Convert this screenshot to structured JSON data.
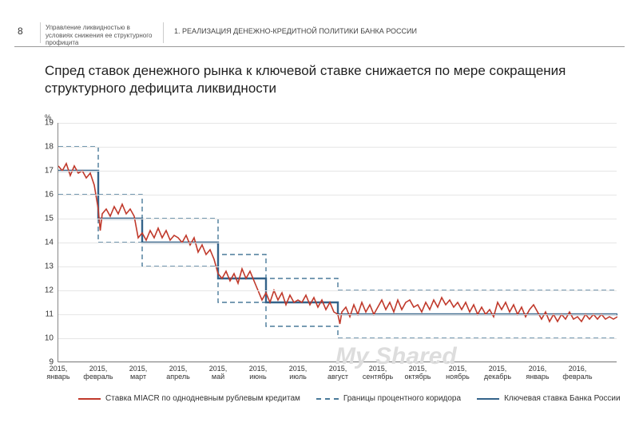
{
  "header": {
    "page_number": "8",
    "doc_title": "Управление ликвидностью в условиях снижения ее структурного профицита",
    "section_title": "1. РЕАЛИЗАЦИЯ ДЕНЕЖНО-КРЕДИТНОЙ ПОЛИТИКИ БАНКА РОССИИ"
  },
  "title": "Спред ставок денежного рынка к ключевой ставке снижается по мере сокращения структурного дефицита ликвидности",
  "chart": {
    "type": "line",
    "y_unit": "%",
    "ylim": [
      9,
      19
    ],
    "yticks": [
      9,
      10,
      11,
      12,
      13,
      14,
      15,
      16,
      17,
      18,
      19
    ],
    "xlim": [
      0,
      14
    ],
    "xticks": [
      {
        "pos": 0.0,
        "l1": "2015,",
        "l2": "январь"
      },
      {
        "pos": 1.0,
        "l1": "2015,",
        "l2": "февраль"
      },
      {
        "pos": 2.0,
        "l1": "2015,",
        "l2": "март"
      },
      {
        "pos": 3.0,
        "l1": "2015,",
        "l2": "апрель"
      },
      {
        "pos": 4.0,
        "l1": "2015,",
        "l2": "май"
      },
      {
        "pos": 5.0,
        "l1": "2015,",
        "l2": "июнь"
      },
      {
        "pos": 6.0,
        "l1": "2015,",
        "l2": "июль"
      },
      {
        "pos": 7.0,
        "l1": "2015,",
        "l2": "август"
      },
      {
        "pos": 8.0,
        "l1": "2015,",
        "l2": "сентябрь"
      },
      {
        "pos": 9.0,
        "l1": "2015,",
        "l2": "октябрь"
      },
      {
        "pos": 10.0,
        "l1": "2015,",
        "l2": "ноябрь"
      },
      {
        "pos": 11.0,
        "l1": "2015,",
        "l2": "декабрь"
      },
      {
        "pos": 12.0,
        "l1": "2016,",
        "l2": "январь"
      },
      {
        "pos": 13.0,
        "l1": "2016,",
        "l2": "февраль"
      }
    ],
    "background_color": "#ffffff",
    "grid_color": "#e6e6e6",
    "series": {
      "miacr": {
        "color": "#c0392b",
        "width": 1.6,
        "dash": "none",
        "data": [
          [
            0.0,
            17.2
          ],
          [
            0.1,
            17.0
          ],
          [
            0.2,
            17.3
          ],
          [
            0.3,
            16.8
          ],
          [
            0.4,
            17.2
          ],
          [
            0.5,
            16.9
          ],
          [
            0.6,
            17.0
          ],
          [
            0.7,
            16.7
          ],
          [
            0.8,
            16.9
          ],
          [
            0.9,
            16.4
          ],
          [
            1.0,
            15.4
          ],
          [
            1.05,
            14.5
          ],
          [
            1.1,
            15.2
          ],
          [
            1.2,
            15.4
          ],
          [
            1.3,
            15.1
          ],
          [
            1.4,
            15.5
          ],
          [
            1.5,
            15.2
          ],
          [
            1.6,
            15.6
          ],
          [
            1.7,
            15.2
          ],
          [
            1.8,
            15.4
          ],
          [
            1.9,
            15.1
          ],
          [
            2.0,
            14.2
          ],
          [
            2.1,
            14.4
          ],
          [
            2.2,
            14.1
          ],
          [
            2.3,
            14.5
          ],
          [
            2.4,
            14.2
          ],
          [
            2.5,
            14.6
          ],
          [
            2.6,
            14.2
          ],
          [
            2.7,
            14.5
          ],
          [
            2.8,
            14.1
          ],
          [
            2.9,
            14.3
          ],
          [
            3.0,
            14.2
          ],
          [
            3.1,
            14.0
          ],
          [
            3.2,
            14.3
          ],
          [
            3.3,
            13.9
          ],
          [
            3.4,
            14.2
          ],
          [
            3.5,
            13.6
          ],
          [
            3.6,
            13.9
          ],
          [
            3.7,
            13.5
          ],
          [
            3.8,
            13.7
          ],
          [
            3.9,
            13.3
          ],
          [
            4.0,
            12.7
          ],
          [
            4.1,
            12.5
          ],
          [
            4.2,
            12.8
          ],
          [
            4.3,
            12.4
          ],
          [
            4.4,
            12.7
          ],
          [
            4.5,
            12.3
          ],
          [
            4.6,
            12.9
          ],
          [
            4.7,
            12.5
          ],
          [
            4.8,
            12.8
          ],
          [
            4.9,
            12.4
          ],
          [
            5.0,
            12.0
          ],
          [
            5.1,
            11.6
          ],
          [
            5.2,
            11.9
          ],
          [
            5.3,
            11.5
          ],
          [
            5.4,
            12.0
          ],
          [
            5.5,
            11.6
          ],
          [
            5.6,
            11.9
          ],
          [
            5.7,
            11.4
          ],
          [
            5.8,
            11.8
          ],
          [
            5.9,
            11.5
          ],
          [
            6.0,
            11.6
          ],
          [
            6.1,
            11.5
          ],
          [
            6.2,
            11.8
          ],
          [
            6.3,
            11.4
          ],
          [
            6.4,
            11.7
          ],
          [
            6.5,
            11.3
          ],
          [
            6.6,
            11.6
          ],
          [
            6.7,
            11.2
          ],
          [
            6.8,
            11.5
          ],
          [
            6.9,
            11.1
          ],
          [
            7.0,
            11.0
          ],
          [
            7.05,
            10.6
          ],
          [
            7.1,
            11.1
          ],
          [
            7.2,
            11.3
          ],
          [
            7.3,
            10.9
          ],
          [
            7.4,
            11.4
          ],
          [
            7.5,
            11.0
          ],
          [
            7.6,
            11.5
          ],
          [
            7.7,
            11.1
          ],
          [
            7.8,
            11.4
          ],
          [
            7.9,
            11.0
          ],
          [
            8.0,
            11.3
          ],
          [
            8.1,
            11.6
          ],
          [
            8.2,
            11.2
          ],
          [
            8.3,
            11.5
          ],
          [
            8.4,
            11.1
          ],
          [
            8.5,
            11.6
          ],
          [
            8.6,
            11.2
          ],
          [
            8.7,
            11.5
          ],
          [
            8.8,
            11.6
          ],
          [
            8.9,
            11.3
          ],
          [
            9.0,
            11.4
          ],
          [
            9.1,
            11.1
          ],
          [
            9.2,
            11.5
          ],
          [
            9.3,
            11.2
          ],
          [
            9.4,
            11.6
          ],
          [
            9.5,
            11.3
          ],
          [
            9.6,
            11.7
          ],
          [
            9.7,
            11.4
          ],
          [
            9.8,
            11.6
          ],
          [
            9.9,
            11.3
          ],
          [
            10.0,
            11.5
          ],
          [
            10.1,
            11.2
          ],
          [
            10.2,
            11.5
          ],
          [
            10.3,
            11.1
          ],
          [
            10.4,
            11.4
          ],
          [
            10.5,
            11.0
          ],
          [
            10.6,
            11.3
          ],
          [
            10.7,
            11.0
          ],
          [
            10.8,
            11.2
          ],
          [
            10.9,
            10.9
          ],
          [
            11.0,
            11.5
          ],
          [
            11.1,
            11.2
          ],
          [
            11.2,
            11.5
          ],
          [
            11.3,
            11.1
          ],
          [
            11.4,
            11.4
          ],
          [
            11.5,
            11.0
          ],
          [
            11.6,
            11.3
          ],
          [
            11.7,
            10.9
          ],
          [
            11.8,
            11.2
          ],
          [
            11.9,
            11.4
          ],
          [
            12.0,
            11.1
          ],
          [
            12.1,
            10.8
          ],
          [
            12.2,
            11.1
          ],
          [
            12.3,
            10.7
          ],
          [
            12.4,
            11.0
          ],
          [
            12.5,
            10.7
          ],
          [
            12.6,
            11.0
          ],
          [
            12.7,
            10.8
          ],
          [
            12.8,
            11.1
          ],
          [
            12.9,
            10.8
          ],
          [
            13.0,
            10.9
          ],
          [
            13.1,
            10.7
          ],
          [
            13.2,
            11.0
          ],
          [
            13.3,
            10.8
          ],
          [
            13.4,
            11.0
          ],
          [
            13.5,
            10.8
          ],
          [
            13.6,
            11.0
          ],
          [
            13.7,
            10.8
          ],
          [
            13.8,
            10.9
          ],
          [
            13.9,
            10.8
          ],
          [
            14.0,
            10.9
          ]
        ]
      },
      "corridor_upper": {
        "color": "#4a7a9a",
        "width": 1.4,
        "dash": "6,4",
        "data": [
          [
            0.0,
            18.0
          ],
          [
            1.0,
            18.0
          ],
          [
            1.0,
            16.0
          ],
          [
            2.1,
            16.0
          ],
          [
            2.1,
            15.0
          ],
          [
            4.0,
            15.0
          ],
          [
            4.0,
            13.5
          ],
          [
            5.2,
            13.5
          ],
          [
            5.2,
            12.5
          ],
          [
            7.0,
            12.5
          ],
          [
            7.0,
            12.0
          ],
          [
            14.0,
            12.0
          ]
        ]
      },
      "corridor_lower": {
        "color": "#4a7a9a",
        "width": 1.4,
        "dash": "6,4",
        "data": [
          [
            0.0,
            16.0
          ],
          [
            1.0,
            16.0
          ],
          [
            1.0,
            14.0
          ],
          [
            2.1,
            14.0
          ],
          [
            2.1,
            13.0
          ],
          [
            4.0,
            13.0
          ],
          [
            4.0,
            11.5
          ],
          [
            5.2,
            11.5
          ],
          [
            5.2,
            10.5
          ],
          [
            7.0,
            10.5
          ],
          [
            7.0,
            10.0
          ],
          [
            14.0,
            10.0
          ]
        ]
      },
      "key_rate": {
        "color": "#34638a",
        "width": 2.4,
        "dash": "none",
        "data": [
          [
            0.0,
            17.0
          ],
          [
            1.0,
            17.0
          ],
          [
            1.0,
            15.0
          ],
          [
            2.1,
            15.0
          ],
          [
            2.1,
            14.0
          ],
          [
            4.0,
            14.0
          ],
          [
            4.0,
            12.5
          ],
          [
            5.2,
            12.5
          ],
          [
            5.2,
            11.5
          ],
          [
            7.0,
            11.5
          ],
          [
            7.0,
            11.0
          ],
          [
            14.0,
            11.0
          ]
        ]
      }
    },
    "legend": [
      {
        "key": "miacr",
        "label": "Ставка MIACR по однодневным рублевым кредитам",
        "color": "#c0392b",
        "dash": "none"
      },
      {
        "key": "corridor",
        "label": "Границы процентного коридора",
        "color": "#4a7a9a",
        "dash": "6,4"
      },
      {
        "key": "key_rate",
        "label": "Ключевая ставка Банка России",
        "color": "#34638a",
        "dash": "none"
      }
    ],
    "label_fontsize": 10
  },
  "watermark": "My Shared"
}
